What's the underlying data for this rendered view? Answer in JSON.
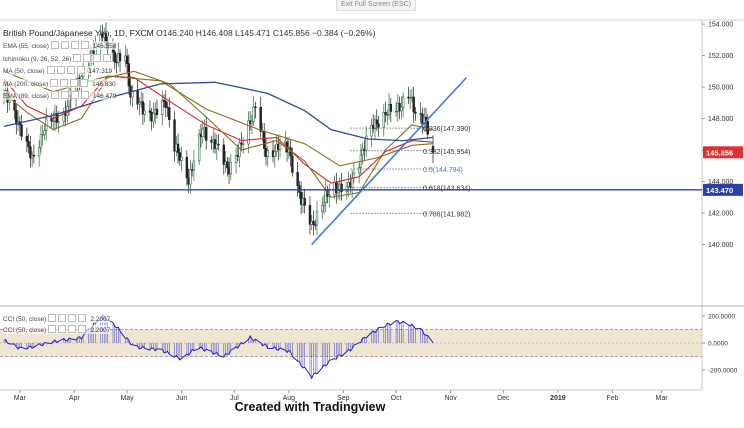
{
  "toolbar": {
    "exit_label": "Exit Full Screen (ESC)"
  },
  "header": {
    "symbol": "British Pound/Japanese Yen, 1D, FXCM",
    "ohlc": "O146.240  H146.408  L145.471  C145.856  −0.384 (−0.26%)"
  },
  "indicators": [
    {
      "label": "EMA (55, close)",
      "value": "146.558"
    },
    {
      "label": "Ichimoku (9, 26, 52, 26)",
      "value": ""
    },
    {
      "label": "MA (50, close)",
      "value": "147.319"
    },
    {
      "label": "MA (200, close)",
      "value": "146.830"
    },
    {
      "label": "EMA (89, close)",
      "value": "146.479"
    }
  ],
  "cci_legends": [
    {
      "label": "CCI (50, close)",
      "value": "2.2007"
    },
    {
      "label": "CCI (50, close)",
      "value": "2.2007"
    }
  ],
  "caption": "Created with Tradingview",
  "colors": {
    "price_up": "#2f6b45",
    "price_down": "#222222",
    "ema55": "#d62728",
    "ma50": "#8c6d1f",
    "ma200": "#2d4b9a",
    "trendline": "#3b7dd8",
    "hline": "#2d3fa8",
    "fib": "#555555",
    "cci": "#1f1fd0",
    "cci_band": "#e9dcc4",
    "badge_price": "#e03030",
    "badge_level": "#2d3fa8"
  },
  "chart_data": [
    {
      "type": "candlestick",
      "title": "British Pound/Japanese Yen, 1D, FXCM",
      "ylim": [
        139,
        155.2
      ],
      "y_ticks": [
        140,
        142,
        144,
        146,
        148,
        150,
        152,
        154
      ],
      "y_tick_labels": [
        "140.000",
        "142.000",
        "144.000",
        "146.000",
        "148.000",
        "150.000",
        "152.000",
        "154.000"
      ],
      "x_labels": [
        "Mar",
        "Apr",
        "May",
        "Jun",
        "Jul",
        "Aug",
        "Sep",
        "Oct",
        "Nov",
        "Dec",
        "2019",
        "Feb",
        "Mar"
      ],
      "price_anchor_points": [
        {
          "date": "2018-02-20",
          "close": 149.6
        },
        {
          "date": "2018-03-01",
          "close": 147.6
        },
        {
          "date": "2018-03-08",
          "close": 145.3
        },
        {
          "date": "2018-03-15",
          "close": 147.5
        },
        {
          "date": "2018-03-26",
          "close": 148.3
        },
        {
          "date": "2018-04-03",
          "close": 150.3
        },
        {
          "date": "2018-04-12",
          "close": 152.2
        },
        {
          "date": "2018-04-17",
          "close": 153.6
        },
        {
          "date": "2018-04-24",
          "close": 151.5
        },
        {
          "date": "2018-04-30",
          "close": 152.3
        },
        {
          "date": "2018-05-03",
          "close": 149.4
        },
        {
          "date": "2018-05-10",
          "close": 148.7
        },
        {
          "date": "2018-05-16",
          "close": 148.1
        },
        {
          "date": "2018-05-23",
          "close": 149.2
        },
        {
          "date": "2018-05-28",
          "close": 146.2
        },
        {
          "date": "2018-06-05",
          "close": 144.2
        },
        {
          "date": "2018-06-13",
          "close": 147.3
        },
        {
          "date": "2018-06-20",
          "close": 146.4
        },
        {
          "date": "2018-06-27",
          "close": 144.8
        },
        {
          "date": "2018-07-05",
          "close": 146.2
        },
        {
          "date": "2018-07-13",
          "close": 148.9
        },
        {
          "date": "2018-07-19",
          "close": 145.6
        },
        {
          "date": "2018-07-26",
          "close": 146.3
        },
        {
          "date": "2018-08-01",
          "close": 146.0
        },
        {
          "date": "2018-08-08",
          "close": 142.8
        },
        {
          "date": "2018-08-14",
          "close": 141.2
        },
        {
          "date": "2018-08-20",
          "close": 142.6
        },
        {
          "date": "2018-08-27",
          "close": 143.7
        },
        {
          "date": "2018-09-04",
          "close": 143.5
        },
        {
          "date": "2018-09-10",
          "close": 145.4
        },
        {
          "date": "2018-09-18",
          "close": 147.6
        },
        {
          "date": "2018-09-25",
          "close": 148.3
        },
        {
          "date": "2018-10-01",
          "close": 148.6
        },
        {
          "date": "2018-10-08",
          "close": 149.5
        },
        {
          "date": "2018-10-12",
          "close": 148.3
        },
        {
          "date": "2018-10-17",
          "close": 148.1
        },
        {
          "date": "2018-10-22",
          "close": 145.9
        }
      ],
      "lines": [
        {
          "key": "ema55",
          "label": "EMA (55, close)",
          "points": [
            [
              "2018-02-20",
              150.5
            ],
            [
              "2018-03-05",
              148.8
            ],
            [
              "2018-03-20",
              148.0
            ],
            [
              "2018-04-05",
              148.8
            ],
            [
              "2018-04-20",
              150.7
            ],
            [
              "2018-05-05",
              150.6
            ],
            [
              "2018-05-25",
              149.1
            ],
            [
              "2018-06-15",
              147.6
            ],
            [
              "2018-07-05",
              146.6
            ],
            [
              "2018-07-25",
              146.8
            ],
            [
              "2018-08-10",
              145.1
            ],
            [
              "2018-08-25",
              143.9
            ],
            [
              "2018-09-10",
              144.3
            ],
            [
              "2018-09-25",
              145.9
            ],
            [
              "2018-10-10",
              146.6
            ],
            [
              "2018-10-22",
              146.5
            ]
          ]
        },
        {
          "key": "ma50",
          "label": "MA (50, close)",
          "points": [
            [
              "2018-02-20",
              149.6
            ],
            [
              "2018-03-05",
              148.4
            ],
            [
              "2018-03-20",
              147.3
            ],
            [
              "2018-04-05",
              148.0
            ],
            [
              "2018-04-20",
              150.6
            ],
            [
              "2018-05-05",
              151.0
            ],
            [
              "2018-05-25",
              150.2
            ],
            [
              "2018-06-15",
              148.1
            ],
            [
              "2018-07-05",
              146.0
            ],
            [
              "2018-07-25",
              146.6
            ],
            [
              "2018-08-10",
              145.3
            ],
            [
              "2018-08-25",
              143.0
            ],
            [
              "2018-09-10",
              143.3
            ],
            [
              "2018-09-25",
              146.0
            ],
            [
              "2018-10-10",
              147.6
            ],
            [
              "2018-10-22",
              147.3
            ]
          ]
        },
        {
          "key": "ma200",
          "label": "MA (200, close)",
          "points": [
            [
              "2018-02-20",
              147.5
            ],
            [
              "2018-03-20",
              148.2
            ],
            [
              "2018-04-20",
              149.3
            ],
            [
              "2018-05-20",
              150.2
            ],
            [
              "2018-06-20",
              150.3
            ],
            [
              "2018-07-20",
              149.6
            ],
            [
              "2018-08-10",
              148.5
            ],
            [
              "2018-08-25",
              147.3
            ],
            [
              "2018-09-15",
              146.7
            ],
            [
              "2018-10-05",
              146.6
            ],
            [
              "2018-10-22",
              146.8
            ]
          ]
        },
        {
          "key": "ema89",
          "label": "EMA (89, close)",
          "points": [
            [
              "2018-02-20",
              151.0
            ],
            [
              "2018-03-20",
              149.7
            ],
            [
              "2018-04-20",
              150.7
            ],
            [
              "2018-05-20",
              150.4
            ],
            [
              "2018-06-15",
              148.6
            ],
            [
              "2018-07-15",
              147.3
            ],
            [
              "2018-08-10",
              146.4
            ],
            [
              "2018-08-30",
              145.0
            ],
            [
              "2018-09-20",
              145.5
            ],
            [
              "2018-10-10",
              146.3
            ],
            [
              "2018-10-22",
              146.4
            ]
          ]
        }
      ],
      "trendline": {
        "start": [
          "2018-08-14",
          140.0
        ],
        "end": [
          "2018-11-10",
          150.6
        ]
      },
      "horizontal_line": 143.47,
      "fib_levels": [
        {
          "label": "0.236(147.390)",
          "value": 147.39
        },
        {
          "label": "0.382(145.954)",
          "value": 145.954
        },
        {
          "label": "0.5(144.794)",
          "value": 144.794
        },
        {
          "label": "0.618(143.634)",
          "value": 143.634
        },
        {
          "label": "0.786(141.982)",
          "value": 141.982
        }
      ],
      "badges": [
        {
          "label": "145.856",
          "value": 145.856,
          "key": "badge_price"
        },
        {
          "label": "143.470",
          "value": 143.47,
          "key": "badge_level"
        }
      ]
    },
    {
      "type": "line",
      "title": "",
      "series": [
        {
          "name": "CCI (50, close)"
        }
      ],
      "ylim": [
        -260,
        260
      ],
      "y_ticks": [
        200,
        0,
        -200
      ],
      "y_tick_labels": [
        "200.0000",
        "0.0000",
        "-200.0000"
      ],
      "band": [
        -100,
        100
      ],
      "cci_anchor_points": [
        [
          "2018-02-20",
          20
        ],
        [
          "2018-03-01",
          -40
        ],
        [
          "2018-03-08",
          -30
        ],
        [
          "2018-03-20",
          10
        ],
        [
          "2018-04-05",
          40
        ],
        [
          "2018-04-17",
          200
        ],
        [
          "2018-04-25",
          120
        ],
        [
          "2018-05-05",
          -30
        ],
        [
          "2018-05-20",
          -50
        ],
        [
          "2018-06-01",
          -120
        ],
        [
          "2018-06-10",
          -30
        ],
        [
          "2018-06-25",
          -100
        ],
        [
          "2018-07-10",
          40
        ],
        [
          "2018-07-20",
          -30
        ],
        [
          "2018-08-01",
          -60
        ],
        [
          "2018-08-14",
          -250
        ],
        [
          "2018-08-25",
          -130
        ],
        [
          "2018-09-05",
          -50
        ],
        [
          "2018-09-15",
          60
        ],
        [
          "2018-09-25",
          130
        ],
        [
          "2018-10-01",
          160
        ],
        [
          "2018-10-08",
          140
        ],
        [
          "2018-10-15",
          100
        ],
        [
          "2018-10-22",
          2.2
        ]
      ]
    }
  ]
}
